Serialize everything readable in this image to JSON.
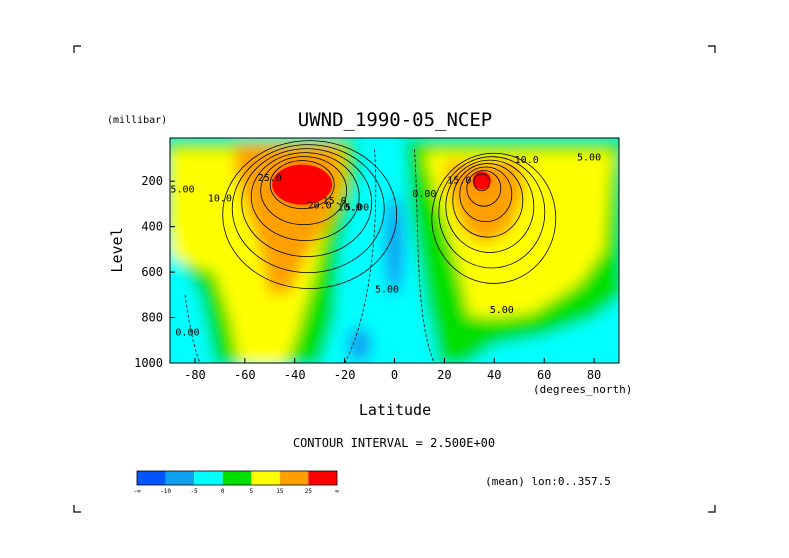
{
  "chart_data": {
    "type": "heatmap",
    "title": "UWND_1990-05_NCEP",
    "xlabel": "Latitude",
    "ylabel": "Level",
    "x_units": "(degrees_north)",
    "y_units": "(millibar)",
    "xlim": [
      -90,
      90
    ],
    "ylim": [
      1000,
      10
    ],
    "x_ticks": [
      -80,
      -60,
      -40,
      -20,
      0,
      20,
      40,
      60,
      80
    ],
    "y_ticks": [
      200,
      400,
      600,
      800,
      1000
    ],
    "contour_interval_label": "CONTOUR INTERVAL = 2.500E+00",
    "averaging_label": "(mean) lon:0..357.5",
    "colorbar": {
      "colors": [
        "#0055ff",
        "#10a0f0",
        "#00ffff",
        "#00e000",
        "#ffff00",
        "#ffa000",
        "#ff0000"
      ],
      "labels": [
        "-∞",
        "-10",
        "-5",
        "0",
        "5",
        "15",
        "25",
        "∞"
      ]
    },
    "contour_labels": [
      {
        "text": "5.00",
        "x": -85,
        "y": 250
      },
      {
        "text": "10.0",
        "x": -70,
        "y": 290
      },
      {
        "text": "25.0",
        "x": -50,
        "y": 200
      },
      {
        "text": "20.0",
        "x": -30,
        "y": 320
      },
      {
        "text": "15.0",
        "x": -24,
        "y": 300
      },
      {
        "text": "10.0",
        "x": -18,
        "y": 330
      },
      {
        "text": "5.00",
        "x": -15,
        "y": 330
      },
      {
        "text": "0.00",
        "x": 12,
        "y": 270
      },
      {
        "text": "5.00",
        "x": -3,
        "y": 690
      },
      {
        "text": "0.00",
        "x": -83,
        "y": 880
      },
      {
        "text": "15.0",
        "x": 26,
        "y": 210
      },
      {
        "text": "10.0",
        "x": 53,
        "y": 120
      },
      {
        "text": "5.00",
        "x": 78,
        "y": 110
      },
      {
        "text": "5.00",
        "x": 43,
        "y": 780
      }
    ],
    "jets": [
      {
        "name": "",
        "lat": -38,
        "level": 220,
        "peak_ms": 28
      },
      {
        "name": "",
        "lat": 35,
        "level": 200,
        "peak_ms": 27
      }
    ]
  }
}
